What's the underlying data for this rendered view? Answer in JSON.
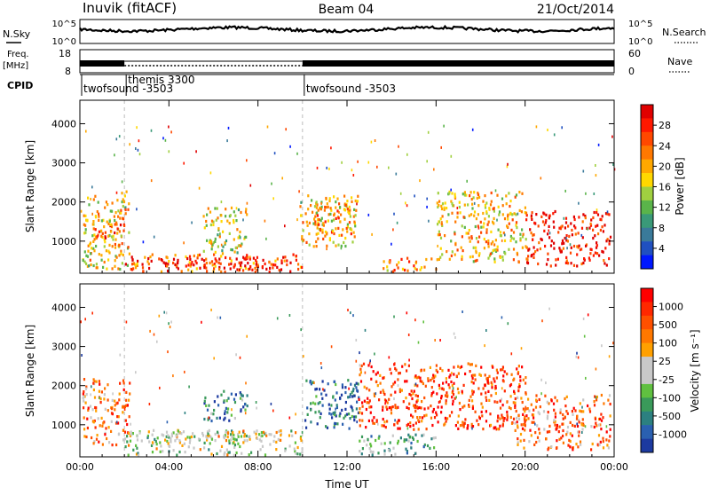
{
  "header": {
    "station": "Inuvik (fitACF)",
    "beam": "Beam 04",
    "date": "21/Oct/2014"
  },
  "top_panels": {
    "nsky_label": "N.Sky",
    "nsky_ticks": [
      "10^5",
      "10^0"
    ],
    "nsearch_label": "N.Search",
    "nsearch_ticks": [
      "10^5",
      "10^0"
    ],
    "freq_label": "Freq.",
    "freq_unit": "[MHz]",
    "freq_ticks": [
      "18",
      "8"
    ],
    "nave_label": "Nave",
    "nave_ticks": [
      "60",
      "0"
    ],
    "cpid_label": "CPID",
    "cpid_segments": [
      {
        "name": "twofsound -3503",
        "start_hr": 0,
        "end_hr": 2
      },
      {
        "name": "themis 3300",
        "start_hr": 2,
        "end_hr": 10
      },
      {
        "name": "twofsound -3503",
        "start_hr": 10,
        "end_hr": 24
      }
    ]
  },
  "chart_data": [
    {
      "type": "heatmap",
      "name": "power",
      "ylabel": "Slant Range [km]",
      "yticks": [
        1000,
        2000,
        3000,
        4000
      ],
      "ylim": [
        180,
        4600
      ],
      "xlim": [
        0,
        24
      ],
      "colorbar_label": "Power [dB]",
      "colorbar_ticks": [
        4,
        8,
        12,
        16,
        20,
        24,
        28
      ],
      "colorbar_colors": [
        "#0018ff",
        "#2050c0",
        "#3a7a9a",
        "#3a9a78",
        "#5ab44a",
        "#a0d040",
        "#ffd800",
        "#ffa800",
        "#ff7800",
        "#ff4800",
        "#ff1800",
        "#e00000"
      ],
      "regions": [
        {
          "x0": 0.1,
          "x1": 2.2,
          "y0": 300,
          "y1": 2300,
          "level": 0.55
        },
        {
          "x0": 0.5,
          "x1": 2.0,
          "y0": 900,
          "y1": 1500,
          "level": 0.8
        },
        {
          "x0": 2.0,
          "x1": 10.0,
          "y0": 250,
          "y1": 700,
          "level": 0.75
        },
        {
          "x0": 3.0,
          "x1": 9.5,
          "y0": 300,
          "y1": 600,
          "level": 0.95
        },
        {
          "x0": 5.5,
          "x1": 7.5,
          "y0": 700,
          "y1": 1900,
          "level": 0.5
        },
        {
          "x0": 9.8,
          "x1": 12.5,
          "y0": 900,
          "y1": 2200,
          "level": 0.55
        },
        {
          "x0": 10.5,
          "x1": 12.2,
          "y0": 1200,
          "y1": 2000,
          "level": 0.7
        },
        {
          "x0": 13.5,
          "x1": 16.0,
          "y0": 250,
          "y1": 600,
          "level": 0.7
        },
        {
          "x0": 16.0,
          "x1": 20.0,
          "y0": 500,
          "y1": 2300,
          "level": 0.6
        },
        {
          "x0": 20.0,
          "x1": 23.8,
          "y0": 400,
          "y1": 1800,
          "level": 0.9
        }
      ]
    },
    {
      "type": "heatmap",
      "name": "velocity",
      "xlabel": "Time UT",
      "ylabel": "Slant Range [km]",
      "xticks": [
        "00:00",
        "04:00",
        "08:00",
        "12:00",
        "16:00",
        "20:00",
        "00:00"
      ],
      "yticks": [
        1000,
        2000,
        3000,
        4000
      ],
      "ylim": [
        180,
        4600
      ],
      "xlim": [
        0,
        24
      ],
      "colorbar_label": "Velocity [m s⁻¹]",
      "colorbar_ticks": [
        "1000",
        "500",
        "100",
        "25",
        "-25",
        "-100",
        "-500",
        "-1000"
      ],
      "colorbar_colors": [
        "#1c3aa0",
        "#2a60b0",
        "#2c8080",
        "#3a9a5a",
        "#60c040",
        "#c8c8c8",
        "#c8c8c8",
        "#ffa000",
        "#ff7800",
        "#ff5000",
        "#ff2800",
        "#ff0000"
      ],
      "regions": [
        {
          "x0": 0.1,
          "x1": 2.2,
          "y0": 500,
          "y1": 2200,
          "level": 0.75
        },
        {
          "x0": 2.0,
          "x1": 10.0,
          "y0": 250,
          "y1": 900,
          "level": 0.45
        },
        {
          "x0": 3.5,
          "x1": 9.0,
          "y0": 600,
          "y1": 900,
          "level": 0.55
        },
        {
          "x0": 5.5,
          "x1": 7.5,
          "y0": 1100,
          "y1": 1900,
          "level": 0.2
        },
        {
          "x0": 10.0,
          "x1": 12.5,
          "y0": 900,
          "y1": 2200,
          "level": 0.15
        },
        {
          "x0": 12.5,
          "x1": 16.0,
          "y0": 250,
          "y1": 800,
          "level": 0.35
        },
        {
          "x0": 12.5,
          "x1": 20.0,
          "y0": 900,
          "y1": 2600,
          "level": 0.85
        },
        {
          "x0": 19.5,
          "x1": 23.8,
          "y0": 400,
          "y1": 1800,
          "level": 0.75
        }
      ]
    }
  ]
}
